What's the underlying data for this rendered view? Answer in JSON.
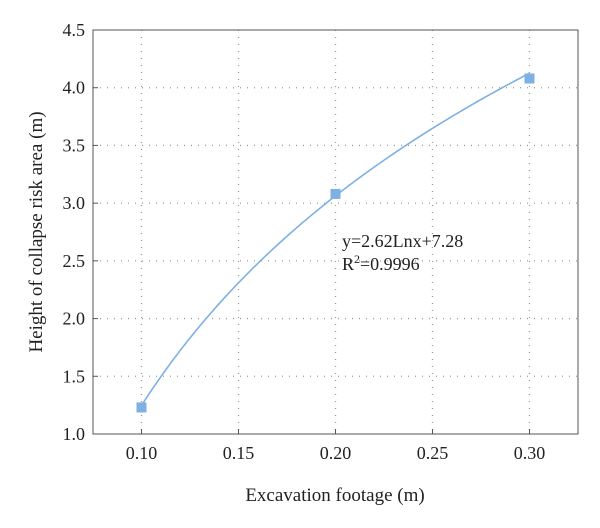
{
  "chart_data": {
    "type": "scatter",
    "xlabel": "Excavation footage (m)",
    "ylabel": "Height of collapse risk area (m)",
    "xlim": [
      0.075,
      0.325
    ],
    "ylim": [
      1.0,
      4.5
    ],
    "xticks": [
      "0.10",
      "0.15",
      "0.20",
      "0.25",
      "0.30"
    ],
    "yticks": [
      "1.0",
      "1.5",
      "2.0",
      "2.5",
      "3.0",
      "3.5",
      "4.0",
      "4.5"
    ],
    "grid": true,
    "series": [
      {
        "marker": "square",
        "color": "#7fb0e3",
        "x": [
          0.1,
          0.2,
          0.3
        ],
        "y": [
          1.23,
          3.08,
          4.08
        ]
      }
    ],
    "trendline": {
      "type": "logarithmic",
      "a": 2.62,
      "b": 7.28,
      "color": "#7fb0e3"
    },
    "annotation": {
      "equation": "y=2.62Lnx+7.28",
      "r2_prefix": "R",
      "r2_sup": "2",
      "r2_value": "=0.9996"
    }
  }
}
